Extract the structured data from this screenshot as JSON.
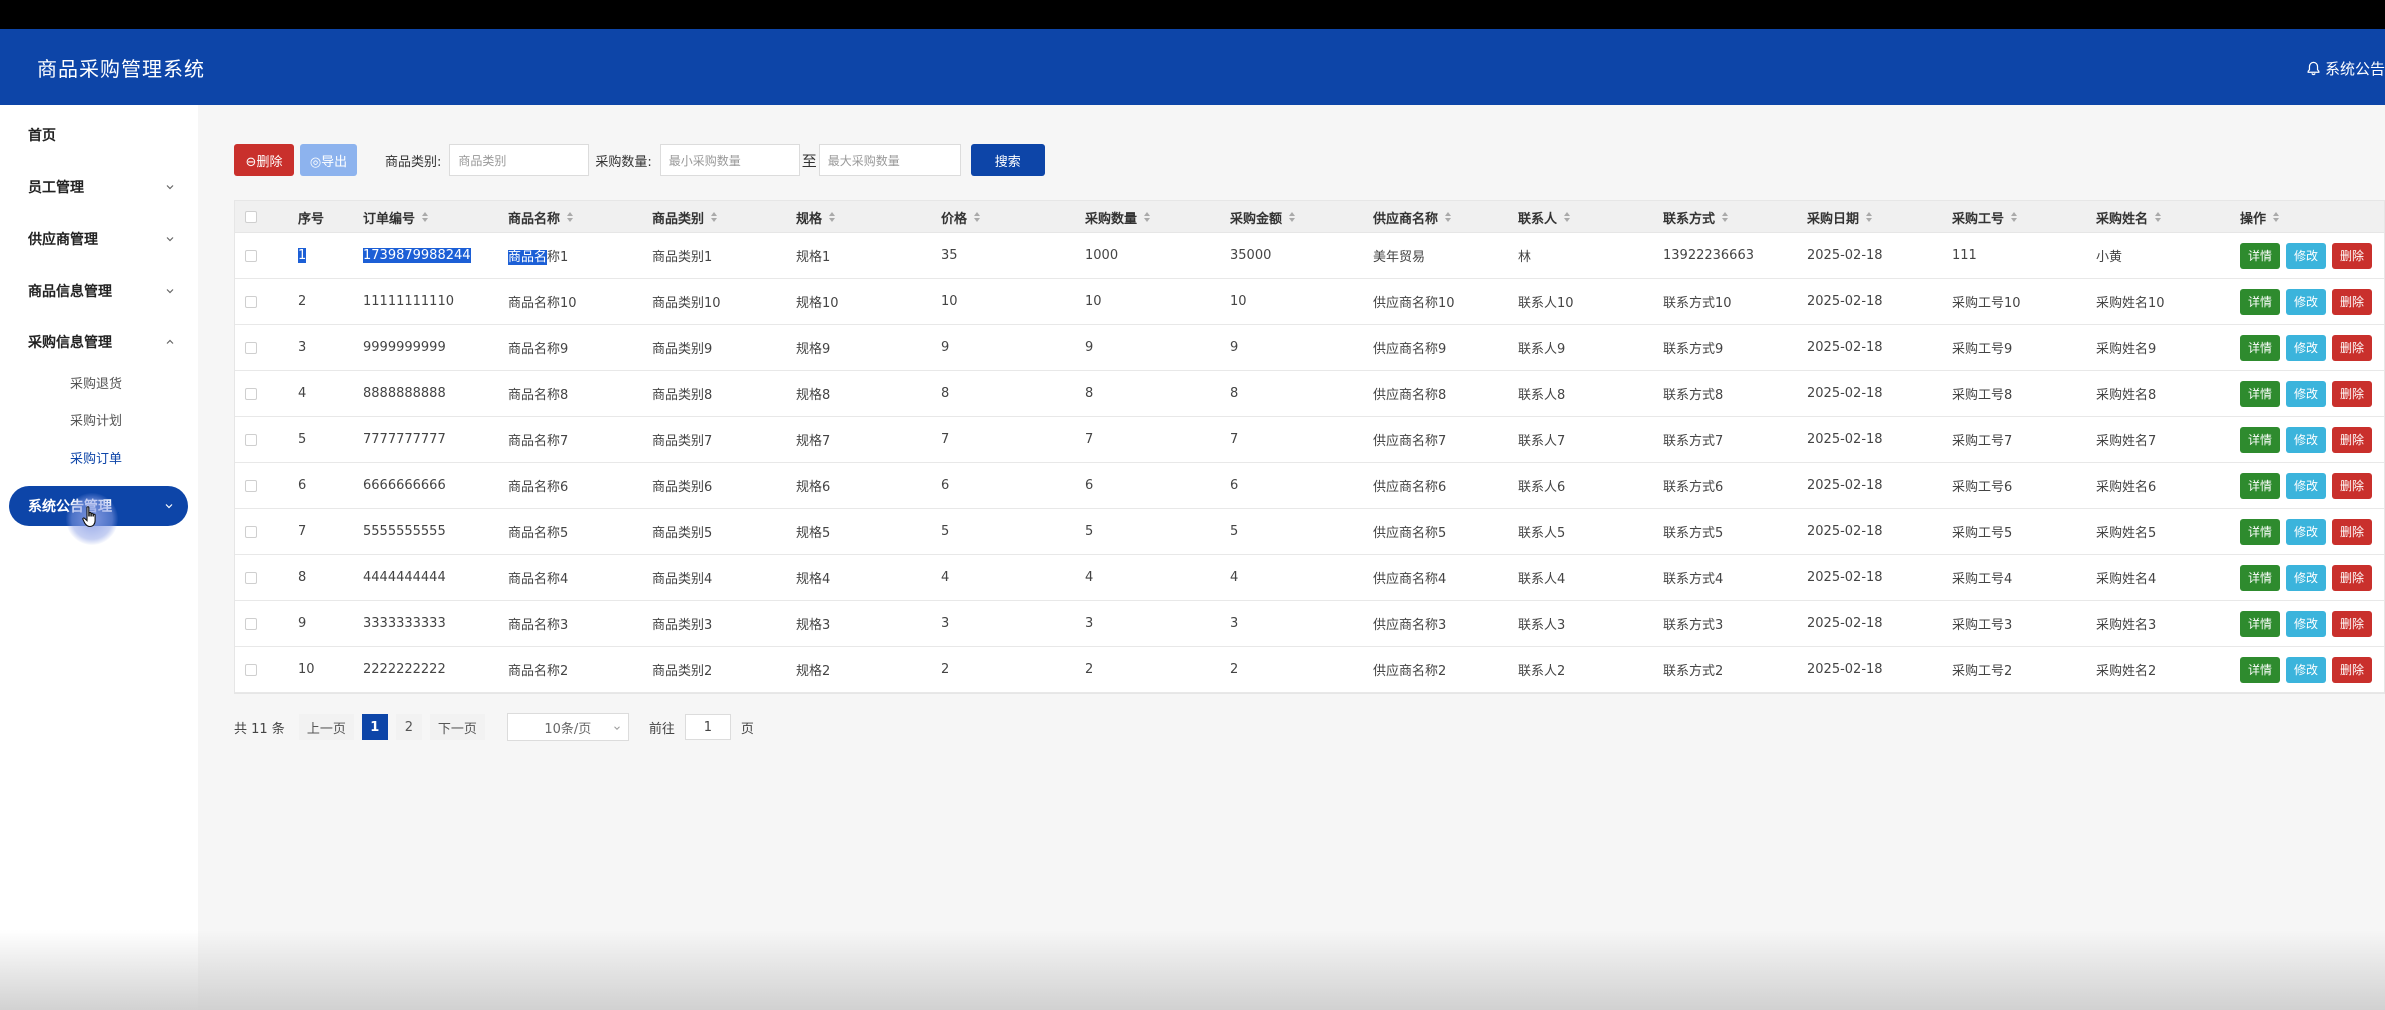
{
  "header": {
    "app_title": "商品采购管理系统",
    "notice_label": "系统公告"
  },
  "sidebar": {
    "home": "首页",
    "menus": [
      {
        "label": "员工管理",
        "expanded": false
      },
      {
        "label": "供应商管理",
        "expanded": false
      },
      {
        "label": "商品信息管理",
        "expanded": false
      },
      {
        "label": "采购信息管理",
        "expanded": true
      }
    ],
    "submenu": [
      {
        "label": "采购退货",
        "active": false
      },
      {
        "label": "采购计划",
        "active": false
      },
      {
        "label": "采购订单",
        "active": true
      }
    ],
    "hovered_menu": "系统公告管理"
  },
  "toolbar": {
    "delete_label": "⊖删除",
    "export_label": "◎导出",
    "category_label": "商品类别:",
    "category_placeholder": "商品类别",
    "qty_label": "采购数量:",
    "qty_min_placeholder": "最小采购数量",
    "to_label": "至",
    "qty_max_placeholder": "最大采购数量",
    "search_label": "搜索"
  },
  "table": {
    "columns": [
      "序号",
      "订单编号",
      "商品名称",
      "商品类别",
      "规格",
      "价格",
      "采购数量",
      "采购金额",
      "供应商名称",
      "联系人",
      "联系方式",
      "采购日期",
      "采购工号",
      "采购姓名",
      "操作"
    ],
    "actions": {
      "detail": "详情",
      "edit": "修改",
      "delete": "删除"
    },
    "rows": [
      [
        "1",
        "1739879988244",
        "商品名称1",
        "商品类别1",
        "规格1",
        "35",
        "1000",
        "35000",
        "美年贸易",
        "林",
        "13922236663",
        "2025-02-18",
        "111",
        "小黄"
      ],
      [
        "2",
        "11111111110",
        "商品名称10",
        "商品类别10",
        "规格10",
        "10",
        "10",
        "10",
        "供应商名称10",
        "联系人10",
        "联系方式10",
        "2025-02-18",
        "采购工号10",
        "采购姓名10"
      ],
      [
        "3",
        "9999999999",
        "商品名称9",
        "商品类别9",
        "规格9",
        "9",
        "9",
        "9",
        "供应商名称9",
        "联系人9",
        "联系方式9",
        "2025-02-18",
        "采购工号9",
        "采购姓名9"
      ],
      [
        "4",
        "8888888888",
        "商品名称8",
        "商品类别8",
        "规格8",
        "8",
        "8",
        "8",
        "供应商名称8",
        "联系人8",
        "联系方式8",
        "2025-02-18",
        "采购工号8",
        "采购姓名8"
      ],
      [
        "5",
        "7777777777",
        "商品名称7",
        "商品类别7",
        "规格7",
        "7",
        "7",
        "7",
        "供应商名称7",
        "联系人7",
        "联系方式7",
        "2025-02-18",
        "采购工号7",
        "采购姓名7"
      ],
      [
        "6",
        "6666666666",
        "商品名称6",
        "商品类别6",
        "规格6",
        "6",
        "6",
        "6",
        "供应商名称6",
        "联系人6",
        "联系方式6",
        "2025-02-18",
        "采购工号6",
        "采购姓名6"
      ],
      [
        "7",
        "5555555555",
        "商品名称5",
        "商品类别5",
        "规格5",
        "5",
        "5",
        "5",
        "供应商名称5",
        "联系人5",
        "联系方式5",
        "2025-02-18",
        "采购工号5",
        "采购姓名5"
      ],
      [
        "8",
        "4444444444",
        "商品名称4",
        "商品类别4",
        "规格4",
        "4",
        "4",
        "4",
        "供应商名称4",
        "联系人4",
        "联系方式4",
        "2025-02-18",
        "采购工号4",
        "采购姓名4"
      ],
      [
        "9",
        "3333333333",
        "商品名称3",
        "商品类别3",
        "规格3",
        "3",
        "3",
        "3",
        "供应商名称3",
        "联系人3",
        "联系方式3",
        "2025-02-18",
        "采购工号3",
        "采购姓名3"
      ],
      [
        "10",
        "2222222222",
        "商品名称2",
        "商品类别2",
        "规格2",
        "2",
        "2",
        "2",
        "供应商名称2",
        "联系人2",
        "联系方式2",
        "2025-02-18",
        "采购工号2",
        "采购姓名2"
      ]
    ]
  },
  "pager": {
    "total": "共 11 条",
    "prev": "上一页",
    "pages": [
      "1",
      "2"
    ],
    "current": "1",
    "next": "下一页",
    "page_size": "10条/页",
    "goto_label": "前往",
    "goto_value": "1",
    "page_suffix": "页"
  },
  "colors": {
    "primary": "#0d45a8",
    "danger": "#c9302c",
    "success": "#2e8b2e",
    "info": "#3bb4dc"
  }
}
